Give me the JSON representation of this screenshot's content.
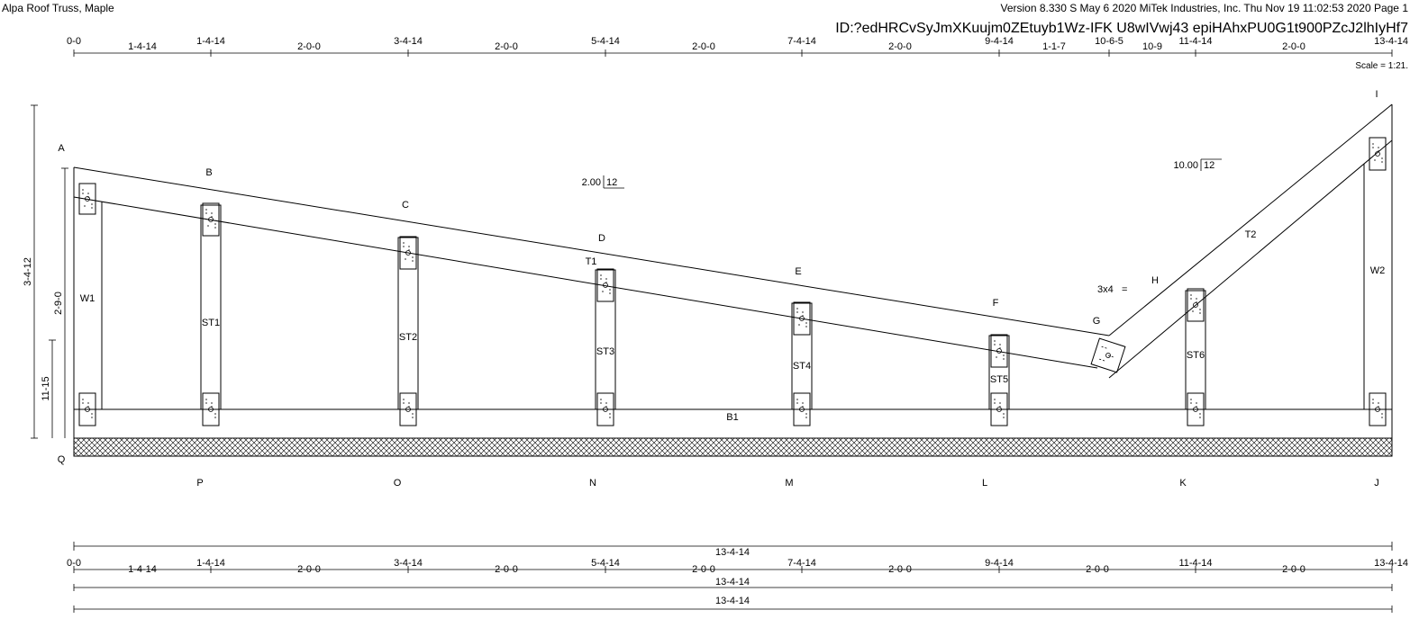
{
  "header": {
    "job_title": "Alpa Roof Truss, Maple",
    "version_line": "Version 8.330 S May  6 2020 MiTek Industries, Inc.  Thu Nov 19 11:02:53 2020  Page 1",
    "id_line": "ID:?edHRCvSyJmXKuujm0ZEtuyb1Wz-IFK  U8wIVwj43  epiHAhxPU0G1t900PZcJ2lhIyHf7",
    "scale": "Scale = 1:21."
  },
  "top_dimensions": {
    "cumulative": [
      "0-0",
      "1-4-14",
      "3-4-14",
      "5-4-14",
      "7-4-14",
      "9-4-14",
      "10-6-5",
      "11-4-14",
      "13-4-14"
    ],
    "segments": [
      "1-4-14",
      "2-0-0",
      "2-0-0",
      "2-0-0",
      "2-0-0",
      "1-1-7",
      "10-9",
      "2-0-0"
    ]
  },
  "vertical_dimensions": {
    "overall": "3-4-12",
    "left_end": "2-9-0",
    "heel": "11-15"
  },
  "joints_top": [
    "A",
    "B",
    "C",
    "D",
    "E",
    "F",
    "G",
    "H",
    "I"
  ],
  "joints_bottom": [
    "Q",
    "P",
    "O",
    "N",
    "M",
    "L",
    "K",
    "J"
  ],
  "members": {
    "top_left": "T1",
    "top_right": "T2",
    "bottom": "B1",
    "webs": [
      "W1",
      "ST1",
      "ST2",
      "ST3",
      "ST4",
      "ST5",
      "ST6",
      "W2"
    ]
  },
  "pitch": {
    "left": {
      "rise": "2.00",
      "run": "12"
    },
    "right": {
      "rise": "10.00",
      "run": "12"
    }
  },
  "plate_label": "3x4",
  "plate_mark": "=",
  "bottom_dimensions": {
    "overall_top": "13-4-14",
    "cumulative": [
      "0-0",
      "1-4-14",
      "3-4-14",
      "5-4-14",
      "7-4-14",
      "9-4-14",
      "11-4-14",
      "13-4-14"
    ],
    "segments": [
      "1-4-14",
      "2-0-0",
      "2-0-0",
      "2-0-0",
      "2-0-0",
      "2-0-0",
      "2-0-0"
    ],
    "overall_second": "13-4-14",
    "overall_third": "13-4-14"
  }
}
